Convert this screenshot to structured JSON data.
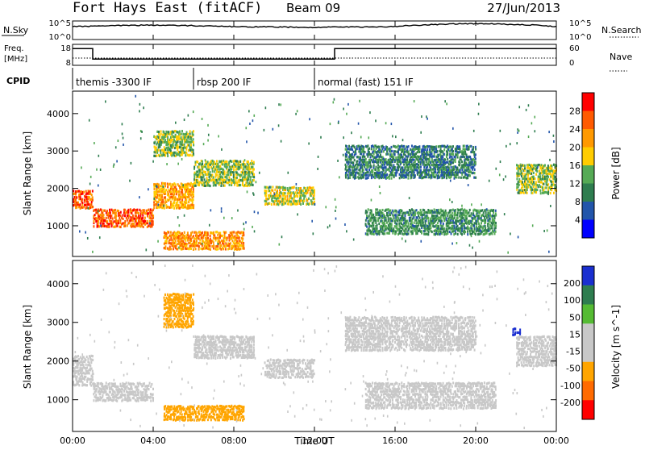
{
  "header": {
    "station": "Fort Hays East (fitACF)",
    "beam": "Beam 09",
    "date": "27/Jun/2013"
  },
  "noise_panel": {
    "left_label": "N.Sky",
    "right_label": "N.Search",
    "left_ticks": [
      "10^5",
      "10^0"
    ],
    "right_ticks": [
      "10^5",
      "10^0"
    ]
  },
  "freq_panel": {
    "left_label_line1": "Freq.",
    "left_label_line2": "[MHz]",
    "right_label": "Nave",
    "left_ticks": [
      "18",
      "8"
    ],
    "right_ticks": [
      "60",
      "0"
    ]
  },
  "cpid": {
    "label": "CPID",
    "segments": [
      {
        "start_hour": 0.0,
        "text": "themis -3300 IF"
      },
      {
        "start_hour": 6.0,
        "text": "rbsp 200 IF"
      },
      {
        "start_hour": 12.0,
        "text": "normal (fast) 151 IF"
      }
    ]
  },
  "x_axis": {
    "label": "Time UT",
    "ticks": [
      "00:00",
      "04:00",
      "08:00",
      "12:00",
      "16:00",
      "20:00",
      "00:00"
    ],
    "range_hours": [
      0,
      24
    ]
  },
  "power_panel": {
    "ylabel": "Slant Range [km]",
    "yticks": [
      "4000",
      "3000",
      "2000",
      "1000"
    ],
    "colorbar_label": "Power [dB]",
    "colorbar_ticks": [
      "28",
      "24",
      "20",
      "16",
      "12",
      "8",
      "4"
    ],
    "colorbar_colors": [
      "#ff0000",
      "#ff5a00",
      "#ff9900",
      "#ffcc00",
      "#55aa55",
      "#2e7d4f",
      "#2255aa",
      "#0000ff"
    ]
  },
  "velocity_panel": {
    "ylabel": "Slant Range [km]",
    "yticks": [
      "4000",
      "3000",
      "2000",
      "1000"
    ],
    "colorbar_label": "Velocity [m s^-1]",
    "colorbar_ticks": [
      "200",
      "100",
      "50",
      "15",
      "-15",
      "-50",
      "-100",
      "-200"
    ],
    "colorbar_colors": [
      "#1a2fd0",
      "#2e7d4f",
      "#55bb33",
      "#c8c8c8",
      "#c8c8c8",
      "#ffa500",
      "#ff6a00",
      "#ff0000"
    ]
  },
  "chart_data": [
    {
      "type": "line",
      "title": "",
      "xlabel": "",
      "ylabel": "N.Sky",
      "yscale": "log",
      "ylim": [
        1,
        100000
      ],
      "x_hours": [
        0.0,
        4.0,
        8.0,
        12.0,
        16.0,
        20.0,
        24.0
      ],
      "values": [
        3000,
        8000,
        3000,
        2000,
        3000,
        20000,
        3000
      ]
    },
    {
      "type": "line",
      "title": "",
      "xlabel": "",
      "ylabel": "Freq. [MHz]",
      "ylim": [
        8,
        18
      ],
      "x_hours": [
        0.0,
        1.0,
        1.0,
        13.0,
        13.0,
        24.0
      ],
      "values": [
        16,
        16,
        11,
        11,
        16,
        16
      ]
    },
    {
      "type": "heatmap",
      "title": "",
      "xlabel": "Time UT",
      "ylabel": "Slant Range [km]",
      "xlim": [
        0,
        24
      ],
      "ylim": [
        180,
        4600
      ],
      "zlabel": "Power [dB]",
      "zlim": [
        0,
        30
      ],
      "regions": [
        {
          "t": [
            0.0,
            1.0
          ],
          "r": [
            1500,
            2000
          ],
          "z": 26
        },
        {
          "t": [
            1.0,
            4.0
          ],
          "r": [
            1000,
            1500
          ],
          "z": 26
        },
        {
          "t": [
            4.0,
            6.0
          ],
          "r": [
            1500,
            2200
          ],
          "z": 20
        },
        {
          "t": [
            6.0,
            9.0
          ],
          "r": [
            2100,
            2800
          ],
          "z": 14
        },
        {
          "t": [
            4.0,
            6.0
          ],
          "r": [
            2900,
            3600
          ],
          "z": 14
        },
        {
          "t": [
            4.5,
            8.5
          ],
          "r": [
            400,
            900
          ],
          "z": 22
        },
        {
          "t": [
            9.5,
            12.0
          ],
          "r": [
            1600,
            2100
          ],
          "z": 16
        },
        {
          "t": [
            14.5,
            21.0
          ],
          "r": [
            800,
            1500
          ],
          "z": 10
        },
        {
          "t": [
            13.5,
            20.0
          ],
          "r": [
            2300,
            3200
          ],
          "z": 8
        },
        {
          "t": [
            22.0,
            24.0
          ],
          "r": [
            1900,
            2700
          ],
          "z": 14
        }
      ]
    },
    {
      "type": "heatmap",
      "title": "",
      "xlabel": "Time UT",
      "ylabel": "Slant Range [km]",
      "xlim": [
        0,
        24
      ],
      "ylim": [
        180,
        4600
      ],
      "zlabel": "Velocity [m s^-1]",
      "zlim": [
        -250,
        250
      ],
      "regions": [
        {
          "t": [
            0.0,
            1.0
          ],
          "r": [
            1400,
            2200
          ],
          "z": 0
        },
        {
          "t": [
            1.0,
            4.0
          ],
          "r": [
            1000,
            1500
          ],
          "z": 0
        },
        {
          "t": [
            4.5,
            6.0
          ],
          "r": [
            2900,
            3800
          ],
          "z": -60
        },
        {
          "t": [
            6.0,
            9.0
          ],
          "r": [
            2100,
            2700
          ],
          "z": 0
        },
        {
          "t": [
            4.5,
            8.5
          ],
          "r": [
            500,
            900
          ],
          "z": -60
        },
        {
          "t": [
            9.5,
            12.0
          ],
          "r": [
            1600,
            2100
          ],
          "z": 0
        },
        {
          "t": [
            14.5,
            21.0
          ],
          "r": [
            800,
            1500
          ],
          "z": 0
        },
        {
          "t": [
            13.5,
            20.0
          ],
          "r": [
            2300,
            3200
          ],
          "z": 0
        },
        {
          "t": [
            22.0,
            24.0
          ],
          "r": [
            1900,
            2700
          ],
          "z": 0
        },
        {
          "t": [
            21.8,
            22.2
          ],
          "r": [
            2700,
            2900
          ],
          "z": 220
        }
      ]
    }
  ]
}
